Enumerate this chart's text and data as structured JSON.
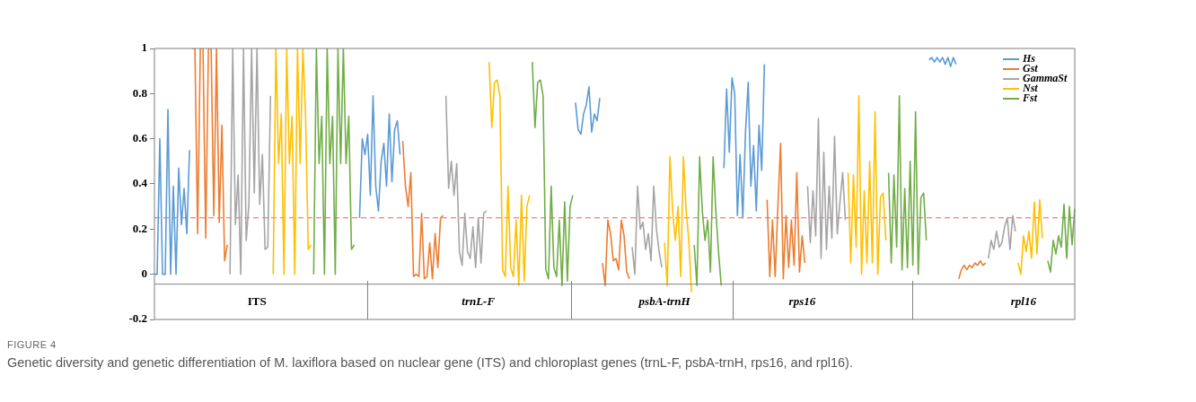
{
  "chart_data": {
    "type": "line",
    "categories": [
      null,
      null,
      null,
      null,
      null,
      null,
      null,
      null,
      null,
      null,
      null,
      null,
      null,
      null,
      null,
      null,
      null,
      null,
      null,
      null,
      null,
      null,
      null,
      null,
      null,
      null,
      null,
      null,
      null,
      null,
      null,
      null,
      null,
      null,
      null,
      null,
      null,
      null,
      "ITS",
      null,
      null,
      null,
      null,
      null,
      null,
      null,
      null,
      null,
      null,
      null,
      null,
      null,
      null,
      null,
      null,
      null,
      null,
      null,
      null,
      null,
      null,
      null,
      null,
      null,
      null,
      null,
      null,
      null,
      null,
      null,
      null,
      null,
      null,
      null,
      null,
      null,
      null,
      null,
      null,
      null,
      null,
      null,
      null,
      null,
      null,
      null,
      null,
      null,
      null,
      null,
      null,
      null,
      null,
      null,
      null,
      null,
      null,
      null,
      null,
      null,
      null,
      null,
      null,
      null,
      null,
      null,
      null,
      null,
      null,
      null,
      null,
      null,
      null,
      null,
      null,
      null,
      null,
      null,
      null,
      null,
      "trnL-F",
      null,
      null,
      null,
      null,
      null,
      null,
      null,
      null,
      null,
      null,
      null,
      null,
      null,
      null,
      null,
      null,
      null,
      null,
      null,
      null,
      null,
      null,
      null,
      null,
      null,
      null,
      null,
      null,
      null,
      null,
      null,
      null,
      null,
      null,
      null,
      null,
      null,
      null,
      null,
      null,
      null,
      null,
      null,
      null,
      null,
      null,
      null,
      null,
      null,
      null,
      null,
      null,
      null,
      null,
      null,
      null,
      null,
      null,
      null,
      null,
      null,
      null,
      null,
      null,
      null,
      null,
      null,
      null,
      "psbA-trnH",
      null,
      null,
      null,
      null,
      null,
      null,
      null,
      null,
      null,
      null,
      null,
      null,
      null,
      null,
      null,
      null,
      null,
      null,
      null,
      null,
      null,
      null,
      null,
      null,
      null,
      null,
      null,
      null,
      null,
      null,
      null,
      null,
      null,
      null,
      null,
      null,
      null,
      null,
      null,
      null,
      null,
      null,
      null,
      null,
      null,
      null,
      null,
      null,
      null,
      null,
      "rps16",
      null,
      null,
      null,
      null,
      null,
      null,
      null,
      null,
      null,
      null,
      null,
      null,
      null,
      null,
      null,
      null,
      null,
      null,
      null,
      null,
      null,
      null,
      null,
      null,
      null,
      null,
      null,
      null,
      null,
      null,
      null,
      null,
      null,
      null,
      null,
      null,
      null,
      null,
      null,
      null,
      null,
      null,
      null,
      null,
      null,
      null,
      null,
      null,
      null,
      null,
      null,
      null,
      null,
      null,
      null,
      null,
      null,
      null,
      null,
      null,
      null,
      null,
      null,
      null,
      null,
      null,
      null,
      null,
      null,
      null,
      null,
      null,
      null,
      null,
      null,
      null,
      null,
      null,
      null,
      null,
      null,
      "rpl16",
      null,
      null,
      null,
      null,
      null,
      null,
      null,
      null,
      null,
      null,
      null,
      null,
      null,
      null,
      null,
      null,
      null,
      null,
      null
    ],
    "series": [
      {
        "name": "Hs",
        "color": "#5b9bd5",
        "values": [
          0,
          0,
          0.6,
          0,
          0,
          0.73,
          0,
          0.39,
          0,
          0.47,
          0.22,
          0.38,
          0.18,
          0.55,
          null,
          null,
          null,
          null,
          null,
          null,
          null,
          null,
          null,
          null,
          null,
          null,
          null,
          null,
          null,
          null,
          null,
          null,
          null,
          null,
          null,
          null,
          null,
          null,
          null,
          null,
          null,
          null,
          null,
          null,
          null,
          null,
          null,
          null,
          null,
          null,
          null,
          null,
          null,
          null,
          null,
          null,
          null,
          null,
          null,
          null,
          null,
          null,
          null,
          null,
          null,
          null,
          null,
          null,
          null,
          null,
          null,
          null,
          null,
          null,
          null,
          null,
          0.25,
          0.6,
          0.53,
          0.62,
          0.35,
          0.79,
          0.39,
          0.28,
          0.5,
          0.58,
          0.39,
          0.71,
          0.41,
          0.64,
          0.68,
          0.53,
          null,
          null,
          null,
          null,
          null,
          null,
          null,
          null,
          null,
          null,
          null,
          null,
          null,
          null,
          null,
          null,
          null,
          null,
          null,
          null,
          null,
          null,
          null,
          null,
          null,
          null,
          null,
          null,
          null,
          null,
          null,
          null,
          null,
          null,
          null,
          null,
          null,
          null,
          null,
          null,
          null,
          null,
          null,
          null,
          null,
          null,
          null,
          null,
          null,
          null,
          null,
          null,
          null,
          null,
          null,
          null,
          null,
          null,
          null,
          null,
          null,
          null,
          null,
          null,
          0.76,
          0.64,
          0.62,
          0.71,
          0.75,
          0.83,
          0.63,
          0.71,
          0.68,
          0.78,
          null,
          null,
          null,
          null,
          null,
          null,
          null,
          null,
          null,
          null,
          null,
          null,
          null,
          null,
          null,
          null,
          null,
          null,
          null,
          null,
          null,
          null,
          null,
          null,
          null,
          null,
          null,
          null,
          null,
          null,
          null,
          null,
          null,
          null,
          null,
          null,
          null,
          null,
          null,
          null,
          null,
          null,
          null,
          null,
          null,
          0.47,
          0.82,
          0.54,
          0.87,
          0.8,
          0.26,
          0.53,
          0.25,
          0.63,
          0.85,
          0.39,
          0.57,
          0.28,
          0.66,
          0.46,
          0.93,
          null,
          null,
          null,
          null,
          null,
          null,
          null,
          null,
          null,
          null,
          null,
          null,
          null,
          null,
          null,
          null,
          null,
          null,
          null,
          null,
          null,
          null,
          null,
          null,
          null,
          null,
          null,
          null,
          null,
          null,
          null,
          null,
          null,
          null,
          null,
          null,
          null,
          null,
          null,
          null,
          null,
          null,
          null,
          null,
          null,
          null,
          null,
          null,
          null,
          null,
          null,
          null,
          null,
          null,
          null,
          null,
          null,
          null,
          null,
          null,
          0.95,
          0.96,
          0.94,
          0.96,
          0.94,
          0.96,
          0.93,
          0.96,
          0.92,
          0.96,
          0.93,
          null,
          null,
          null,
          null,
          null,
          null,
          null,
          null,
          null,
          null,
          null,
          null,
          null,
          null,
          null,
          null,
          null,
          null,
          null,
          null,
          null,
          null,
          null,
          null,
          null,
          null,
          null,
          null,
          null,
          null,
          null,
          null,
          null,
          null,
          null,
          null,
          null,
          null,
          null,
          null,
          null,
          null,
          null,
          null
        ]
      },
      {
        "name": "Gst",
        "color": "#ed7d31",
        "values": [
          null,
          null,
          null,
          null,
          null,
          null,
          null,
          null,
          null,
          null,
          null,
          null,
          null,
          null,
          1,
          1,
          0.18,
          1,
          1,
          0.16,
          1,
          1,
          0.26,
          1,
          0.23,
          0.66,
          0.06,
          0.13,
          null,
          null,
          null,
          null,
          null,
          null,
          null,
          null,
          null,
          null,
          null,
          null,
          null,
          null,
          null,
          null,
          null,
          null,
          null,
          null,
          null,
          null,
          null,
          null,
          null,
          null,
          null,
          null,
          null,
          null,
          null,
          null,
          null,
          null,
          null,
          null,
          null,
          null,
          null,
          null,
          null,
          null,
          null,
          null,
          null,
          null,
          null,
          null,
          null,
          null,
          null,
          null,
          null,
          null,
          null,
          null,
          null,
          null,
          null,
          null,
          null,
          null,
          null,
          null,
          0.59,
          0.39,
          0.3,
          0.45,
          -0.01,
          0,
          -0.01,
          0.27,
          -0.02,
          -0.01,
          0.14,
          -0.02,
          0.18,
          0.03,
          0.25,
          0.26,
          null,
          null,
          null,
          null,
          null,
          null,
          null,
          null,
          null,
          null,
          null,
          null,
          null,
          null,
          null,
          null,
          null,
          null,
          null,
          null,
          null,
          null,
          null,
          null,
          null,
          null,
          null,
          null,
          null,
          null,
          null,
          null,
          null,
          null,
          null,
          null,
          null,
          null,
          null,
          null,
          null,
          null,
          null,
          null,
          null,
          null,
          null,
          null,
          null,
          null,
          null,
          null,
          null,
          null,
          null,
          null,
          null,
          null,
          0.05,
          -0.05,
          0.24,
          0.18,
          0.06,
          0.07,
          0.02,
          0.24,
          0.17,
          0.01,
          -0.02,
          null,
          null,
          null,
          null,
          null,
          null,
          null,
          null,
          null,
          null,
          null,
          null,
          null,
          null,
          null,
          null,
          null,
          null,
          null,
          null,
          null,
          null,
          null,
          null,
          null,
          null,
          null,
          null,
          null,
          null,
          null,
          null,
          null,
          null,
          null,
          null,
          null,
          null,
          null,
          null,
          null,
          null,
          null,
          null,
          null,
          null,
          null,
          null,
          null,
          null,
          0.33,
          -0.01,
          0.24,
          -0.01,
          0.3,
          0.58,
          -0.02,
          0.26,
          0.03,
          0.24,
          0.04,
          0.45,
          0.01,
          0.17,
          0.05,
          null,
          null,
          null,
          null,
          null,
          null,
          null,
          null,
          null,
          null,
          null,
          null,
          null,
          null,
          null,
          null,
          null,
          null,
          null,
          null,
          null,
          null,
          null,
          null,
          null,
          null,
          null,
          null,
          null,
          null,
          null,
          null,
          null,
          null,
          null,
          null,
          null,
          null,
          null,
          null,
          null,
          null,
          null,
          null,
          null,
          null,
          null,
          null,
          null,
          null,
          null,
          null,
          null,
          null,
          null,
          null,
          -0.02,
          0.02,
          0.04,
          0.02,
          0.04,
          0.03,
          0.05,
          0.04,
          0.06,
          0.04,
          0.05,
          null,
          null,
          null,
          null,
          null,
          null,
          null,
          null,
          null,
          null,
          null,
          null,
          null,
          null,
          null,
          null,
          null,
          null,
          null,
          null,
          null,
          null,
          null,
          null,
          null,
          null,
          null,
          null,
          null,
          null,
          null,
          null,
          null
        ]
      },
      {
        "name": "GammaSt",
        "color": "#a5a5a5",
        "values": [
          null,
          null,
          null,
          null,
          null,
          null,
          null,
          null,
          null,
          null,
          null,
          null,
          null,
          null,
          null,
          null,
          null,
          null,
          null,
          null,
          null,
          null,
          null,
          null,
          null,
          null,
          null,
          null,
          0,
          1,
          0.22,
          0.44,
          0,
          1,
          0.15,
          0.31,
          1,
          0.36,
          1,
          0.31,
          0.53,
          0.11,
          0.12,
          0.79,
          null,
          null,
          null,
          null,
          null,
          null,
          null,
          null,
          null,
          null,
          null,
          null,
          null,
          null,
          null,
          null,
          null,
          null,
          null,
          null,
          null,
          null,
          null,
          null,
          null,
          null,
          null,
          null,
          null,
          null,
          null,
          null,
          null,
          null,
          null,
          null,
          null,
          null,
          null,
          null,
          null,
          null,
          null,
          null,
          null,
          null,
          null,
          null,
          null,
          null,
          null,
          null,
          null,
          null,
          null,
          null,
          null,
          null,
          null,
          null,
          null,
          null,
          null,
          null,
          0.79,
          0.38,
          0.5,
          0.35,
          0.49,
          0.1,
          0.04,
          0.27,
          0.1,
          0.07,
          0.21,
          0.03,
          0.25,
          0.05,
          0.27,
          0.28,
          null,
          null,
          null,
          null,
          null,
          null,
          null,
          null,
          null,
          null,
          null,
          null,
          null,
          null,
          null,
          null,
          null,
          null,
          null,
          null,
          null,
          null,
          null,
          null,
          null,
          null,
          null,
          null,
          null,
          null,
          null,
          null,
          null,
          null,
          null,
          null,
          null,
          null,
          null,
          null,
          null,
          null,
          null,
          null,
          null,
          null,
          null,
          null,
          null,
          null,
          null,
          null,
          null,
          0.12,
          0,
          0.39,
          0.2,
          0.23,
          0.11,
          0.18,
          0.06,
          0.39,
          0.2,
          0.1,
          0.03,
          null,
          null,
          null,
          null,
          null,
          null,
          null,
          null,
          null,
          null,
          null,
          null,
          null,
          null,
          null,
          null,
          null,
          null,
          null,
          null,
          null,
          null,
          null,
          null,
          null,
          null,
          null,
          null,
          null,
          null,
          null,
          null,
          null,
          null,
          null,
          null,
          null,
          null,
          null,
          null,
          null,
          null,
          null,
          null,
          null,
          null,
          null,
          null,
          null,
          null,
          null,
          null,
          null,
          0.39,
          0.14,
          0.37,
          0.17,
          0.69,
          0.07,
          0.54,
          0.11,
          0.39,
          0.16,
          0.61,
          0.18,
          0.32,
          0.45,
          0.24,
          null,
          null,
          null,
          null,
          null,
          null,
          null,
          null,
          null,
          null,
          null,
          null,
          null,
          null,
          null,
          null,
          null,
          null,
          null,
          null,
          null,
          null,
          null,
          null,
          null,
          null,
          null,
          null,
          null,
          null,
          null,
          null,
          null,
          null,
          null,
          null,
          null,
          null,
          null,
          null,
          null,
          null,
          null,
          null,
          null,
          null,
          null,
          null,
          null,
          null,
          null,
          null,
          0.07,
          0.15,
          0.11,
          0.19,
          0.12,
          0.14,
          0.21,
          0.25,
          0.11,
          0.26,
          0.19,
          null,
          null,
          null,
          null,
          null,
          null,
          null,
          null,
          null,
          null,
          null,
          null,
          null,
          null,
          null,
          null,
          null,
          null,
          null,
          null,
          null,
          null
        ]
      },
      {
        "name": "Nst",
        "color": "#ffc000",
        "values": [
          null,
          null,
          null,
          null,
          null,
          null,
          null,
          null,
          null,
          null,
          null,
          null,
          null,
          null,
          null,
          null,
          null,
          null,
          null,
          null,
          null,
          null,
          null,
          null,
          null,
          null,
          null,
          null,
          null,
          null,
          null,
          null,
          null,
          null,
          null,
          null,
          null,
          null,
          null,
          null,
          null,
          null,
          null,
          null,
          0,
          1,
          0.49,
          0.71,
          0,
          1,
          0.49,
          0.7,
          0,
          1,
          0.49,
          1,
          0.7,
          0.11,
          0.13,
          null,
          null,
          null,
          null,
          null,
          null,
          null,
          null,
          null,
          null,
          null,
          null,
          null,
          null,
          null,
          null,
          null,
          null,
          null,
          null,
          null,
          null,
          null,
          null,
          null,
          null,
          null,
          null,
          null,
          null,
          null,
          null,
          null,
          null,
          null,
          null,
          null,
          null,
          null,
          null,
          null,
          null,
          null,
          null,
          null,
          null,
          null,
          null,
          null,
          null,
          null,
          null,
          null,
          null,
          null,
          null,
          null,
          null,
          null,
          null,
          null,
          null,
          null,
          null,
          null,
          0.94,
          0.65,
          0.85,
          0.86,
          0.79,
          0.02,
          -0.01,
          0.39,
          0.03,
          -0.01,
          0.24,
          -0.05,
          0.35,
          -0.03,
          0.3,
          0.35,
          null,
          null,
          null,
          null,
          null,
          null,
          null,
          null,
          null,
          null,
          null,
          null,
          null,
          null,
          null,
          null,
          null,
          null,
          null,
          null,
          null,
          null,
          null,
          null,
          null,
          null,
          null,
          null,
          null,
          null,
          null,
          null,
          null,
          null,
          null,
          null,
          null,
          null,
          null,
          null,
          null,
          null,
          null,
          null,
          null,
          null,
          null,
          null,
          null,
          0.14,
          -0.05,
          0.52,
          0.28,
          0.15,
          0.3,
          -0.01,
          0.52,
          0.28,
          0.15,
          -0.08,
          null,
          null,
          null,
          null,
          null,
          null,
          null,
          null,
          null,
          null,
          null,
          null,
          null,
          null,
          null,
          null,
          null,
          null,
          null,
          null,
          null,
          null,
          null,
          null,
          null,
          null,
          null,
          null,
          null,
          null,
          null,
          null,
          null,
          null,
          null,
          null,
          null,
          null,
          null,
          null,
          null,
          null,
          null,
          null,
          null,
          null,
          null,
          null,
          null,
          null,
          null,
          null,
          null,
          null,
          null,
          null,
          null,
          0.45,
          0.05,
          0.44,
          0.12,
          0.79,
          0,
          0.37,
          0.05,
          0.5,
          0.05,
          0.72,
          0,
          0.34,
          0.36,
          0.15,
          null,
          null,
          null,
          null,
          null,
          null,
          null,
          null,
          null,
          null,
          null,
          null,
          null,
          null,
          null,
          null,
          null,
          null,
          null,
          null,
          null,
          null,
          null,
          null,
          null,
          null,
          null,
          null,
          null,
          null,
          null,
          null,
          null,
          null,
          null,
          null,
          null,
          null,
          null,
          null,
          null,
          null,
          null,
          null,
          null,
          null,
          null,
          null,
          0.05,
          0,
          0.17,
          0.1,
          0.19,
          0.07,
          0.32,
          0.09,
          0.33,
          0.16,
          null,
          null,
          null,
          null,
          null,
          null,
          null,
          null,
          null,
          null,
          null,
          null
        ]
      },
      {
        "name": "Fst",
        "color": "#70ad47",
        "values": [
          null,
          null,
          null,
          null,
          null,
          null,
          null,
          null,
          null,
          null,
          null,
          null,
          null,
          null,
          null,
          null,
          null,
          null,
          null,
          null,
          null,
          null,
          null,
          null,
          null,
          null,
          null,
          null,
          null,
          null,
          null,
          null,
          null,
          null,
          null,
          null,
          null,
          null,
          null,
          null,
          null,
          null,
          null,
          null,
          null,
          null,
          null,
          null,
          null,
          null,
          null,
          null,
          null,
          null,
          null,
          null,
          null,
          null,
          null,
          0,
          1,
          0.49,
          0.7,
          0,
          1,
          0.49,
          0.7,
          0,
          1,
          0.49,
          1,
          0.49,
          0.7,
          0.11,
          0.13,
          null,
          null,
          null,
          null,
          null,
          null,
          null,
          null,
          null,
          null,
          null,
          null,
          null,
          null,
          null,
          null,
          null,
          null,
          null,
          null,
          null,
          null,
          null,
          null,
          null,
          null,
          null,
          null,
          null,
          null,
          null,
          null,
          null,
          null,
          null,
          null,
          null,
          null,
          null,
          null,
          null,
          null,
          null,
          null,
          null,
          null,
          null,
          null,
          null,
          null,
          null,
          null,
          null,
          null,
          null,
          null,
          null,
          null,
          null,
          null,
          null,
          null,
          null,
          null,
          null,
          0.94,
          0.65,
          0.85,
          0.86,
          0.79,
          0.02,
          -0.02,
          0.39,
          0.03,
          -0.01,
          0.24,
          -0.05,
          0.32,
          -0.03,
          0.3,
          0.35,
          null,
          null,
          null,
          null,
          null,
          null,
          null,
          null,
          null,
          null,
          null,
          null,
          null,
          null,
          null,
          null,
          null,
          null,
          null,
          null,
          null,
          null,
          null,
          null,
          null,
          null,
          null,
          null,
          null,
          null,
          null,
          null,
          null,
          null,
          null,
          null,
          null,
          null,
          null,
          null,
          null,
          null,
          null,
          null,
          0.13,
          -0.05,
          0.52,
          0.28,
          0.15,
          0.24,
          0.01,
          0.52,
          0.28,
          0.1,
          -0.05,
          null,
          null,
          null,
          null,
          null,
          null,
          null,
          null,
          null,
          null,
          null,
          null,
          null,
          null,
          null,
          null,
          null,
          null,
          null,
          null,
          null,
          null,
          null,
          null,
          null,
          null,
          null,
          null,
          null,
          null,
          null,
          null,
          null,
          null,
          null,
          null,
          null,
          null,
          null,
          null,
          null,
          null,
          null,
          null,
          null,
          null,
          null,
          null,
          null,
          null,
          null,
          null,
          null,
          null,
          null,
          null,
          null,
          null,
          null,
          null,
          null,
          0.45,
          0.05,
          0.44,
          0.12,
          0.79,
          0.02,
          0.38,
          0.03,
          0.5,
          0.04,
          0.72,
          0,
          0.34,
          0.36,
          0.15,
          null,
          null,
          null,
          null,
          null,
          null,
          null,
          null,
          null,
          null,
          null,
          null,
          null,
          null,
          null,
          null,
          null,
          null,
          null,
          null,
          null,
          null,
          null,
          null,
          null,
          null,
          null,
          null,
          null,
          null,
          null,
          null,
          null,
          null,
          null,
          null,
          null,
          null,
          null,
          null,
          null,
          null,
          null,
          null,
          0.06,
          0.01,
          0.15,
          0.09,
          0.17,
          0.12,
          0.31,
          0.07,
          0.3,
          0.13,
          0.29
        ]
      }
    ],
    "ylim": [
      -0.2,
      1
    ],
    "yticks": [
      -0.2,
      0,
      0.2,
      0.4,
      0.6,
      0.8,
      1
    ],
    "ref_lines": [
      {
        "axis": "y",
        "value": 0.25,
        "color": "#ff5a5a",
        "line_style": "dashed"
      }
    ],
    "legend": "top right",
    "grid": false,
    "marker": "none",
    "line_style": "solid",
    "annotations": [
      "FIGURE 4",
      "Genetic diversity and genetic differentiation of M. laxiflora based on nuclear gene (ITS) and chloroplast genes (trnL-F, psbA-trnH, rps16, and rpl16)."
    ]
  }
}
